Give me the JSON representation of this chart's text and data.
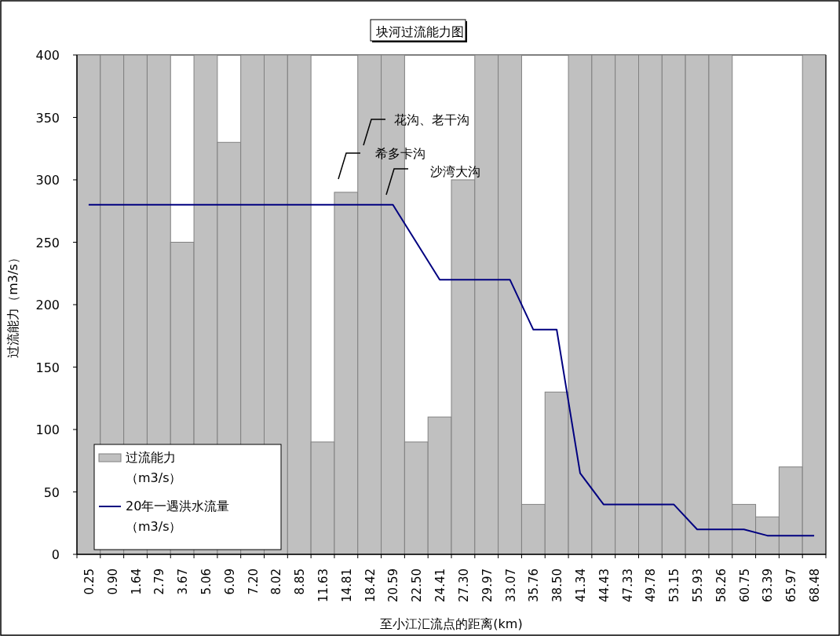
{
  "chart_data": {
    "type": "bar",
    "title": "块河过流能力图",
    "xlabel": "至小江汇流点的距离(km)",
    "ylabel": "过流能力（m3/s）",
    "categories": [
      "0.25",
      "0.90",
      "1.64",
      "2.79",
      "3.67",
      "5.06",
      "6.09",
      "7.20",
      "8.02",
      "8.85",
      "11.63",
      "14.81",
      "18.42",
      "20.59",
      "22.50",
      "24.41",
      "27.30",
      "29.97",
      "33.07",
      "35.76",
      "38.50",
      "41.34",
      "44.43",
      "47.33",
      "49.78",
      "53.15",
      "55.93",
      "58.26",
      "60.75",
      "63.39",
      "65.97",
      "68.48"
    ],
    "series": [
      {
        "name": "过流能力（m3/s）",
        "color": "#c0c0c0",
        "values": [
          400,
          400,
          400,
          400,
          250,
          400,
          330,
          400,
          400,
          400,
          90,
          290,
          400,
          400,
          90,
          110,
          300,
          400,
          400,
          40,
          130,
          400,
          400,
          400,
          400,
          400,
          400,
          400,
          40,
          30,
          70,
          400
        ]
      },
      {
        "name": "20年一遇洪水流量（m3/s）",
        "type": "line",
        "color": "#000080",
        "values": [
          280,
          280,
          280,
          280,
          280,
          280,
          280,
          280,
          280,
          280,
          280,
          280,
          280,
          280,
          250,
          220,
          220,
          220,
          220,
          180,
          180,
          65,
          40,
          40,
          40,
          40,
          20,
          20,
          20,
          15,
          15,
          15
        ]
      }
    ],
    "ylim": [
      0,
      400
    ],
    "yticks": [
      0,
      50,
      100,
      150,
      200,
      250,
      300,
      350,
      400
    ],
    "grid": false,
    "legend": "bottom left",
    "marker": "none",
    "line_style": "solid",
    "annotations": [
      "花沟、老干沟",
      "希多卡沟",
      "沙湾大沟"
    ]
  }
}
